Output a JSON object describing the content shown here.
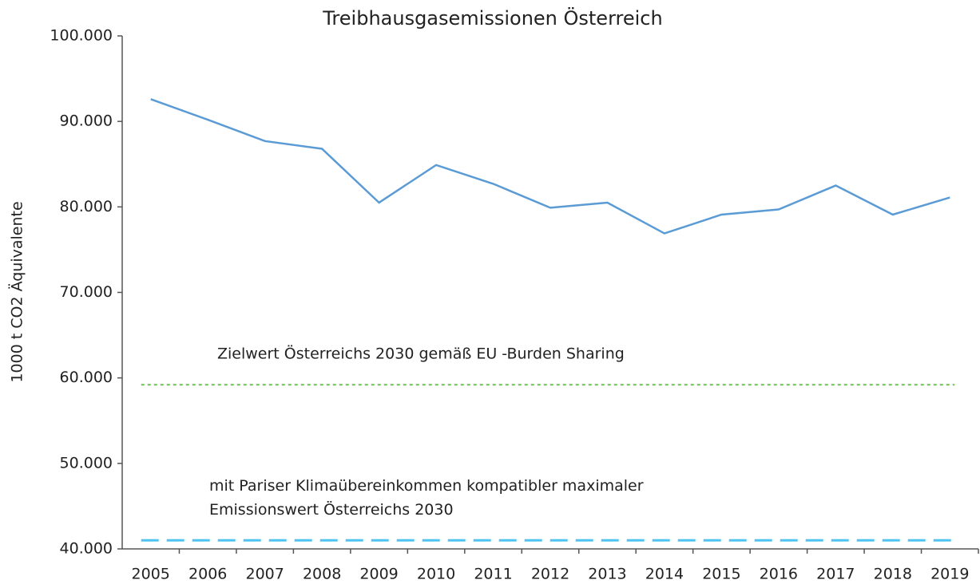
{
  "chart_data": {
    "type": "line",
    "title": "Treibhausgasemissionen Österreich",
    "ylabel": "1000 t CO2 Äquivalente",
    "categories": [
      "2005",
      "2006",
      "2007",
      "2008",
      "2009",
      "2010",
      "2011",
      "2012",
      "2013",
      "2014",
      "2015",
      "2016",
      "2017",
      "2018",
      "2019"
    ],
    "series": [
      {
        "color": "#5b9bd5",
        "values": [
          92600,
          90200,
          87700,
          86800,
          80500,
          84900,
          82700,
          79900,
          80500,
          76900,
          79100,
          79700,
          82500,
          79100,
          81100
        ]
      }
    ],
    "reference_lines": [
      {
        "value": 59200,
        "color": "#70c050",
        "style": "dotted",
        "label": [
          "Zielwert Österreichs 2030 gemäß EU -Burden Sharing"
        ]
      },
      {
        "value": 41000,
        "color": "#4fc3f0",
        "style": "dashed",
        "label": [
          "mit Pariser Klimaübereinkommen kompatibler maximaler",
          "Emissionswert Österreichs 2030"
        ]
      }
    ],
    "ylim": [
      40000,
      100000
    ],
    "yticks": [
      {
        "value": 40000,
        "label": "40.000"
      },
      {
        "value": 50000,
        "label": "50.000"
      },
      {
        "value": 60000,
        "label": "60.000"
      },
      {
        "value": 70000,
        "label": "70.000"
      },
      {
        "value": 80000,
        "label": "80.000"
      },
      {
        "value": 90000,
        "label": "90.000"
      },
      {
        "value": 100000,
        "label": "100.000"
      }
    ],
    "grid": false
  }
}
